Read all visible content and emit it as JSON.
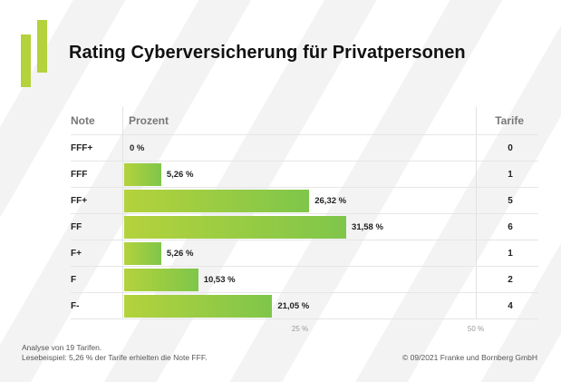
{
  "title": "Rating Cyberversicherung für Privatpersonen",
  "headers": {
    "note": "Note",
    "prozent": "Prozent",
    "tarife": "Tarife"
  },
  "colors": {
    "accent": "#b4d23c",
    "bar_start": "#b4d23c",
    "bar_end": "#7fc64a"
  },
  "chart_data": {
    "type": "bar",
    "orientation": "horizontal",
    "categories": [
      "FFF+",
      "FFF",
      "FF+",
      "FF",
      "F+",
      "F",
      "F-"
    ],
    "values": [
      0,
      5.26,
      26.32,
      31.58,
      5.26,
      10.53,
      21.05
    ],
    "value_labels": [
      "0 %",
      "5,26 %",
      "26,32 %",
      "31,58 %",
      "5,26 %",
      "10,53 %",
      "21,05 %"
    ],
    "tarife": [
      "0",
      "1",
      "5",
      "6",
      "1",
      "2",
      "4"
    ],
    "xlim": [
      0,
      50
    ],
    "x_ticks": [
      "25 %",
      "50 %"
    ],
    "x_tick_values": [
      25,
      50
    ]
  },
  "footer": {
    "line1": "Analyse von 19 Tarifen.",
    "line2": "Lesebeispiel: 5,26 % der Tarife erhielten die Note FFF.",
    "copyright": "© 09/2021 Franke und Bornberg GmbH"
  }
}
